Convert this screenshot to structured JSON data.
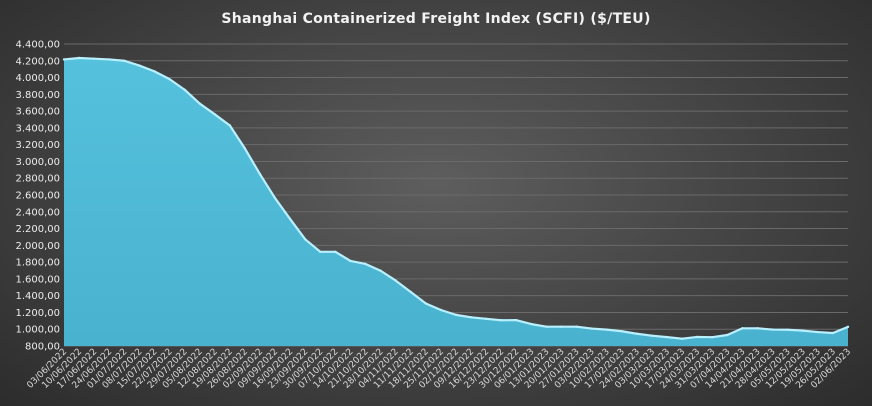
{
  "chart_data": {
    "type": "area",
    "title": "Shanghai Containerized Freight Index  (SCFI) ($/TEU)",
    "xlabel": "",
    "ylabel": "",
    "ylim": [
      800,
      4400
    ],
    "yticks": [
      800,
      1000,
      1200,
      1400,
      1600,
      1800,
      2000,
      2200,
      2400,
      2600,
      2800,
      3000,
      3200,
      3400,
      3600,
      3800,
      4000,
      4200,
      4400
    ],
    "ytick_labels": [
      "800,00",
      "1.000,00",
      "1.200,00",
      "1.400,00",
      "1.600,00",
      "1.800,00",
      "2.000,00",
      "2.200,00",
      "2.400,00",
      "2.600,00",
      "2.800,00",
      "3.000,00",
      "3.200,00",
      "3.400,00",
      "3.600,00",
      "3.800,00",
      "4.000,00",
      "4.200,00",
      "4.400,00"
    ],
    "grid": true,
    "legend": "none",
    "color": "#4fb9d6",
    "categories": [
      "03/06/2022",
      "10/06/2022",
      "17/06/2022",
      "24/06/2022",
      "01/07/2022",
      "08/07/2022",
      "15/07/2022",
      "22/07/2022",
      "29/07/2022",
      "05/08/2022",
      "12/08/2022",
      "19/08/2022",
      "26/08/2022",
      "02/09/2022",
      "09/09/2022",
      "16/09/2022",
      "23/09/2022",
      "30/09/2022",
      "07/10/2022",
      "14/10/2022",
      "21/10/2022",
      "28/10/2022",
      "04/11/2022",
      "11/11/2022",
      "18/11/2022",
      "25/11/2022",
      "02/12/2022",
      "09/12/2022",
      "16/12/2022",
      "23/12/2022",
      "30/12/2022",
      "06/01/2023",
      "13/01/2023",
      "20/01/2023",
      "27/01/2023",
      "03/02/2023",
      "10/02/2023",
      "17/02/2023",
      "24/02/2023",
      "03/03/2023",
      "10/03/2023",
      "17/03/2023",
      "24/03/2023",
      "31/03/2023",
      "07/04/2023",
      "14/04/2023",
      "21/04/2023",
      "28/04/2023",
      "05/05/2023",
      "12/05/2023",
      "19/05/2023",
      "26/05/2023",
      "02/06/2023"
    ],
    "values": [
      4216,
      4233,
      4225,
      4216,
      4200,
      4143,
      4074,
      3981,
      3855,
      3690,
      3562,
      3429,
      3154,
      2848,
      2562,
      2313,
      2072,
      1923,
      1923,
      1814,
      1778,
      1697,
      1580,
      1444,
      1307,
      1229,
      1171,
      1142,
      1124,
      1107,
      1108,
      1061,
      1030,
      1030,
      1030,
      1008,
      995,
      976,
      946,
      923,
      906,
      887,
      908,
      905,
      931,
      1011,
      1011,
      996,
      994,
      983,
      966,
      955,
      1028
    ]
  }
}
